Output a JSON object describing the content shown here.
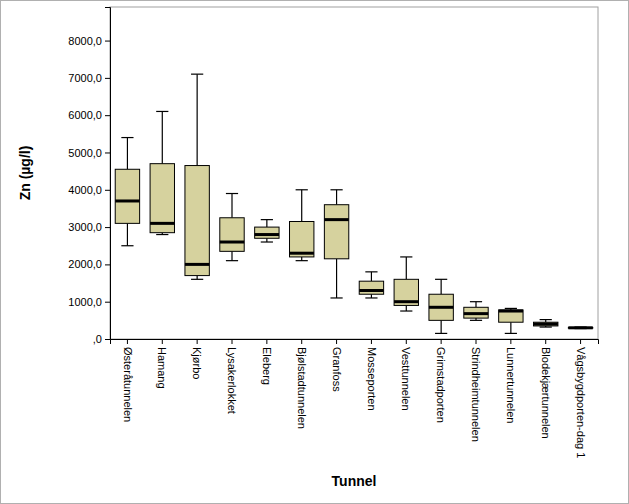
{
  "chart_data": {
    "type": "box",
    "x_label": "Tunnel",
    "y_label": "Zn (µg/l)",
    "categories": [
      "Østeråtunnelen",
      "Hamang",
      "Kjørbo",
      "Lysakerlokket",
      "Eleberg",
      "Bjølstadtunnelen",
      "Granfoss",
      "Mosseporten",
      "Vesttunnelen",
      "Grimstadporten",
      "Strindheimtunnelen",
      "Lunnertunnelen",
      "Blodekjærtunnelen",
      "Vågsbygdporten-dag 1"
    ],
    "min": [
      2500,
      2800,
      1600,
      2100,
      2600,
      2100,
      1100,
      1100,
      750,
      150,
      500,
      150,
      320,
      280
    ],
    "q1": [
      3100,
      2850,
      1700,
      2350,
      2700,
      2200,
      2150,
      1200,
      900,
      500,
      560,
      450,
      350,
      290
    ],
    "median": [
      3700,
      3100,
      2000,
      2600,
      2800,
      2300,
      3200,
      1300,
      1000,
      850,
      680,
      750,
      400,
      300
    ],
    "q3": [
      4550,
      4700,
      4650,
      3250,
      3000,
      3150,
      3600,
      1550,
      1600,
      1200,
      850,
      780,
      450,
      310
    ],
    "max": [
      5400,
      6100,
      7100,
      3900,
      3200,
      4000,
      4000,
      1800,
      2200,
      1600,
      1000,
      820,
      520,
      320
    ],
    "color": "#d6d29e",
    "ylim": [
      0,
      8900
    ],
    "yticks": [
      {
        "value": 0,
        "label": ",0"
      },
      {
        "value": 1000,
        "label": "1000,0"
      },
      {
        "value": 2000,
        "label": "2000,0"
      },
      {
        "value": 3000,
        "label": "3000,0"
      },
      {
        "value": 4000,
        "label": "4000,0"
      },
      {
        "value": 5000,
        "label": "5000,0"
      },
      {
        "value": 6000,
        "label": "6000,0"
      },
      {
        "value": 7000,
        "label": "7000,0"
      },
      {
        "value": 8000,
        "label": "8000,0"
      }
    ],
    "grid": false
  }
}
